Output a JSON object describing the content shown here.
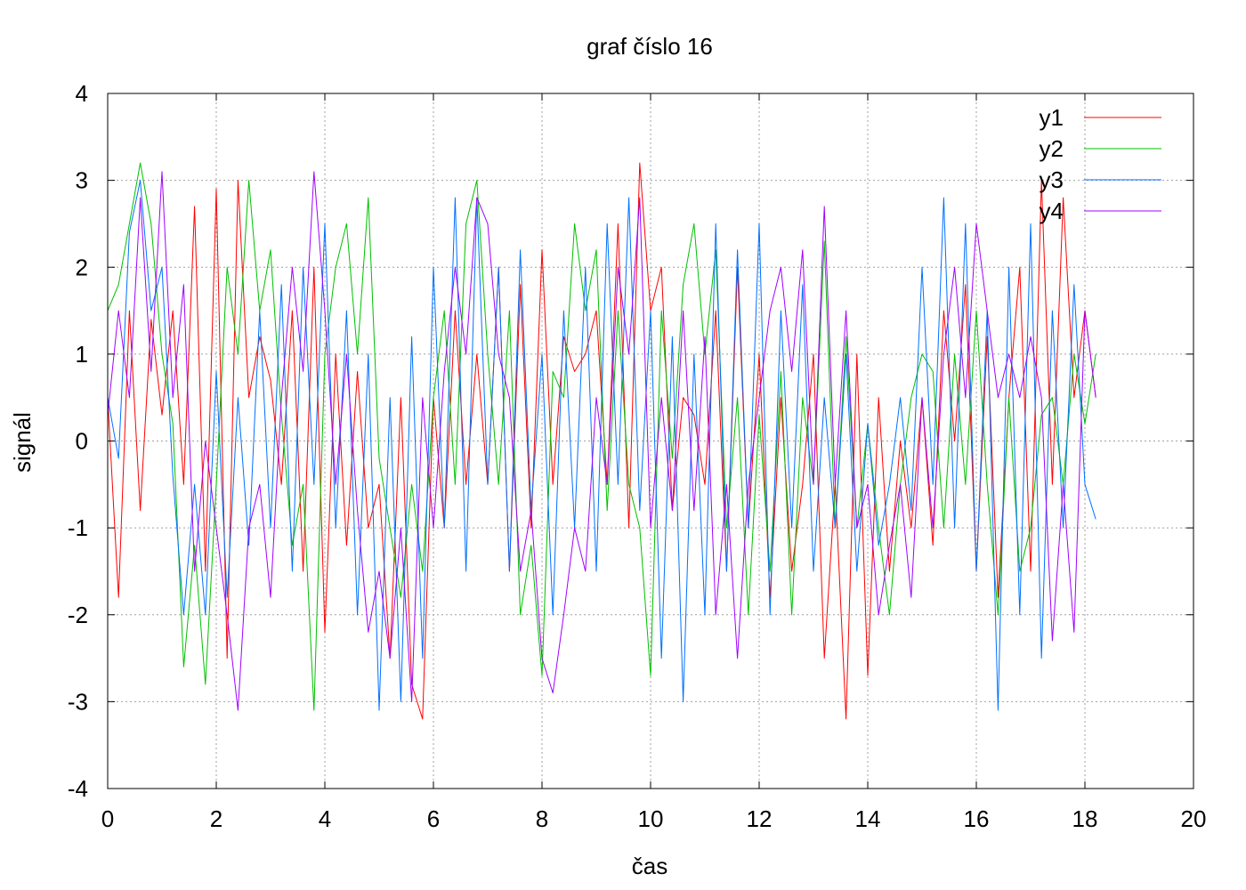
{
  "chart_data": {
    "type": "line",
    "title": "graf číslo 16",
    "xlabel": "čas",
    "ylabel": "signál",
    "xlim": [
      0,
      20
    ],
    "ylim": [
      -4,
      4
    ],
    "x_ticks": [
      0,
      2,
      4,
      6,
      8,
      10,
      12,
      14,
      16,
      18,
      20
    ],
    "y_ticks": [
      -4,
      -3,
      -2,
      -1,
      0,
      1,
      2,
      3,
      4
    ],
    "x_tick_labels": [
      "0",
      "2",
      "4",
      "6",
      "8",
      "10",
      "12",
      "14",
      "16",
      "18",
      "20"
    ],
    "y_tick_labels": [
      "-4",
      "-3",
      "-2",
      "-1",
      "0",
      "1",
      "2",
      "3",
      "4"
    ],
    "grid": true,
    "legend_position": "top-right",
    "series": [
      {
        "name": "y1",
        "color": "#ff0000",
        "x": [
          0.0,
          0.2,
          0.4,
          0.6,
          0.8,
          1.0,
          1.2,
          1.4,
          1.6,
          1.8,
          2.0,
          2.2,
          2.4,
          2.6,
          2.8,
          3.0,
          3.2,
          3.4,
          3.6,
          3.8,
          4.0,
          4.2,
          4.4,
          4.6,
          4.8,
          5.0,
          5.2,
          5.4,
          5.6,
          5.8,
          6.0,
          6.2,
          6.4,
          6.6,
          6.8,
          7.0,
          7.2,
          7.4,
          7.6,
          7.8,
          8.0,
          8.2,
          8.4,
          8.6,
          8.8,
          9.0,
          9.2,
          9.4,
          9.6,
          9.8,
          10.0,
          10.2,
          10.4,
          10.6,
          10.8,
          11.0,
          11.2,
          11.4,
          11.6,
          11.8,
          12.0,
          12.2,
          12.4,
          12.6,
          12.8,
          13.0,
          13.2,
          13.4,
          13.6,
          13.8,
          14.0,
          14.2,
          14.4,
          14.6,
          14.8,
          15.0,
          15.2,
          15.4,
          15.6,
          15.8,
          16.0,
          16.2,
          16.4,
          16.6,
          16.8,
          17.0,
          17.2,
          17.4,
          17.6,
          17.8,
          18.0,
          18.2
        ],
        "values": [
          0.5,
          -1.8,
          1.5,
          -0.8,
          1.4,
          0.3,
          1.5,
          -0.5,
          2.7,
          -1.5,
          2.9,
          -2.5,
          3.0,
          0.5,
          1.2,
          0.7,
          -0.5,
          1.5,
          -1.5,
          2.0,
          -2.2,
          1.0,
          -1.2,
          0.8,
          -1.0,
          -0.5,
          -2.5,
          0.5,
          -2.8,
          -3.2,
          0.5,
          -1.0,
          1.5,
          -0.5,
          1.0,
          -0.5,
          2.0,
          -1.5,
          1.8,
          -1.0,
          2.2,
          -0.5,
          1.2,
          0.8,
          1.0,
          1.5,
          -0.5,
          2.5,
          -1.0,
          3.2,
          1.5,
          2.0,
          -0.8,
          0.5,
          0.3,
          -0.5,
          1.5,
          -1.5,
          2.0,
          -1.0,
          1.0,
          -1.8,
          0.5,
          -1.5,
          -0.5,
          1.0,
          -2.5,
          -0.5,
          -3.2,
          1.0,
          -2.7,
          0.5,
          -1.5,
          0.0,
          -1.0,
          0.5,
          -1.2,
          1.5,
          0.0,
          1.8,
          -1.5,
          1.2,
          -1.8,
          0.5,
          2.0,
          -1.5,
          3.0,
          -0.5,
          2.8,
          0.5,
          1.5,
          0.5
        ]
      },
      {
        "name": "y2",
        "color": "#00c000",
        "x": [
          0.0,
          0.2,
          0.4,
          0.6,
          0.8,
          1.0,
          1.2,
          1.4,
          1.6,
          1.8,
          2.0,
          2.2,
          2.4,
          2.6,
          2.8,
          3.0,
          3.2,
          3.4,
          3.6,
          3.8,
          4.0,
          4.2,
          4.4,
          4.6,
          4.8,
          5.0,
          5.2,
          5.4,
          5.6,
          5.8,
          6.0,
          6.2,
          6.4,
          6.6,
          6.8,
          7.0,
          7.2,
          7.4,
          7.6,
          7.8,
          8.0,
          8.2,
          8.4,
          8.6,
          8.8,
          9.0,
          9.2,
          9.4,
          9.6,
          9.8,
          10.0,
          10.2,
          10.4,
          10.6,
          10.8,
          11.0,
          11.2,
          11.4,
          11.6,
          11.8,
          12.0,
          12.2,
          12.4,
          12.6,
          12.8,
          13.0,
          13.2,
          13.4,
          13.6,
          13.8,
          14.0,
          14.2,
          14.4,
          14.6,
          14.8,
          15.0,
          15.2,
          15.4,
          15.6,
          15.8,
          16.0,
          16.2,
          16.4,
          16.6,
          16.8,
          17.0,
          17.2,
          17.4,
          17.6,
          17.8,
          18.0,
          18.2
        ],
        "values": [
          1.5,
          1.8,
          2.5,
          3.2,
          2.5,
          1.0,
          0.2,
          -2.6,
          -1.2,
          -2.8,
          -0.5,
          2.0,
          1.0,
          3.0,
          1.5,
          2.2,
          0.3,
          -1.2,
          -0.5,
          -3.1,
          1.0,
          2.0,
          2.5,
          1.0,
          2.8,
          -0.2,
          -1.0,
          -1.8,
          -0.5,
          -1.5,
          0.5,
          1.5,
          -0.5,
          2.5,
          3.0,
          1.0,
          -0.5,
          1.5,
          -2.0,
          -1.2,
          -2.7,
          0.8,
          0.5,
          2.5,
          1.5,
          2.2,
          -0.8,
          1.5,
          -0.5,
          -1.0,
          -2.7,
          1.5,
          -0.2,
          1.8,
          2.5,
          1.0,
          2.2,
          -1.0,
          0.5,
          -2.0,
          0.3,
          -1.5,
          0.8,
          -2.0,
          0.5,
          -0.5,
          2.3,
          -1.0,
          1.2,
          -1.0,
          0.2,
          -1.0,
          -2.0,
          -0.5,
          0.5,
          1.0,
          0.8,
          -1.0,
          1.0,
          -0.5,
          1.5,
          -0.5,
          -2.0,
          0.5,
          -1.5,
          -1.0,
          0.3,
          0.5,
          -0.5,
          1.0,
          0.2,
          1.0
        ]
      },
      {
        "name": "y3",
        "color": "#0070ff",
        "x": [
          0.0,
          0.2,
          0.4,
          0.6,
          0.8,
          1.0,
          1.2,
          1.4,
          1.6,
          1.8,
          2.0,
          2.2,
          2.4,
          2.6,
          2.8,
          3.0,
          3.2,
          3.4,
          3.6,
          3.8,
          4.0,
          4.2,
          4.4,
          4.6,
          4.8,
          5.0,
          5.2,
          5.4,
          5.6,
          5.8,
          6.0,
          6.2,
          6.4,
          6.6,
          6.8,
          7.0,
          7.2,
          7.4,
          7.6,
          7.8,
          8.0,
          8.2,
          8.4,
          8.6,
          8.8,
          9.0,
          9.2,
          9.4,
          9.6,
          9.8,
          10.0,
          10.2,
          10.4,
          10.6,
          10.8,
          11.0,
          11.2,
          11.4,
          11.6,
          11.8,
          12.0,
          12.2,
          12.4,
          12.6,
          12.8,
          13.0,
          13.2,
          13.4,
          13.6,
          13.8,
          14.0,
          14.2,
          14.4,
          14.6,
          14.8,
          15.0,
          15.2,
          15.4,
          15.6,
          15.8,
          16.0,
          16.2,
          16.4,
          16.6,
          16.8,
          17.0,
          17.2,
          17.4,
          17.6,
          17.8,
          18.0,
          18.2
        ],
        "values": [
          0.5,
          -0.2,
          2.4,
          3.0,
          1.5,
          2.0,
          -0.4,
          -2.0,
          -0.5,
          -2.0,
          0.8,
          -1.8,
          0.5,
          -1.2,
          1.5,
          -1.0,
          1.8,
          -1.5,
          2.0,
          -0.5,
          2.5,
          -1.0,
          1.5,
          -2.0,
          1.0,
          -3.1,
          0.5,
          -3.0,
          1.2,
          -2.5,
          2.0,
          -1.0,
          2.8,
          -1.5,
          2.8,
          -0.5,
          2.0,
          -1.5,
          2.2,
          -0.8,
          1.0,
          -2.0,
          1.5,
          -1.0,
          2.0,
          -1.5,
          2.5,
          -0.5,
          2.8,
          -0.8,
          1.5,
          -2.5,
          1.2,
          -3.0,
          1.0,
          -2.0,
          2.5,
          -1.5,
          2.2,
          -1.0,
          2.5,
          -2.0,
          1.5,
          -1.0,
          1.8,
          -1.5,
          0.5,
          -1.0,
          1.0,
          -1.5,
          0.2,
          -1.2,
          -0.5,
          0.5,
          -0.8,
          2.0,
          -0.5,
          2.8,
          -1.0,
          2.5,
          -1.5,
          1.5,
          -3.1,
          2.0,
          -2.0,
          2.5,
          -2.5,
          1.5,
          -1.0,
          1.8,
          -0.5,
          -0.9
        ]
      },
      {
        "name": "y4",
        "color": "#a000ff",
        "x": [
          0.0,
          0.2,
          0.4,
          0.6,
          0.8,
          1.0,
          1.2,
          1.4,
          1.6,
          1.8,
          2.0,
          2.2,
          2.4,
          2.6,
          2.8,
          3.0,
          3.2,
          3.4,
          3.6,
          3.8,
          4.0,
          4.2,
          4.4,
          4.6,
          4.8,
          5.0,
          5.2,
          5.4,
          5.6,
          5.8,
          6.0,
          6.2,
          6.4,
          6.6,
          6.8,
          7.0,
          7.2,
          7.4,
          7.6,
          7.8,
          8.0,
          8.2,
          8.4,
          8.6,
          8.8,
          9.0,
          9.2,
          9.4,
          9.6,
          9.8,
          10.0,
          10.2,
          10.4,
          10.6,
          10.8,
          11.0,
          11.2,
          11.4,
          11.6,
          11.8,
          12.0,
          12.2,
          12.4,
          12.6,
          12.8,
          13.0,
          13.2,
          13.4,
          13.6,
          13.8,
          14.0,
          14.2,
          14.4,
          14.6,
          14.8,
          15.0,
          15.2,
          15.4,
          15.6,
          15.8,
          16.0,
          16.2,
          16.4,
          16.6,
          16.8,
          17.0,
          17.2,
          17.4,
          17.6,
          17.8,
          18.0,
          18.2
        ],
        "values": [
          0.3,
          1.5,
          0.5,
          2.8,
          0.8,
          3.1,
          0.5,
          1.8,
          -1.5,
          0.0,
          -1.0,
          -2.0,
          -3.1,
          -1.0,
          -0.5,
          -1.8,
          0.5,
          2.0,
          0.8,
          3.1,
          1.5,
          -0.5,
          1.0,
          -0.8,
          -2.2,
          -1.5,
          -2.5,
          -1.0,
          -3.0,
          0.5,
          -1.0,
          0.8,
          2.0,
          1.0,
          2.8,
          2.5,
          1.0,
          0.5,
          -1.5,
          -0.8,
          -2.5,
          -2.9,
          -2.0,
          -1.0,
          -1.5,
          0.5,
          -0.5,
          2.0,
          1.0,
          2.8,
          -1.0,
          0.5,
          -0.8,
          1.5,
          -0.8,
          1.2,
          -2.0,
          -0.5,
          -2.5,
          -0.5,
          0.5,
          1.5,
          2.0,
          0.8,
          2.2,
          -0.5,
          2.7,
          -0.5,
          1.5,
          -1.0,
          -0.5,
          -2.0,
          -1.2,
          -0.5,
          -1.8,
          0.5,
          -1.0,
          1.0,
          2.0,
          0.5,
          2.5,
          1.5,
          0.5,
          1.0,
          0.5,
          1.2,
          0.5,
          -2.3,
          -0.5,
          -2.2,
          1.5,
          0.5
        ]
      }
    ]
  }
}
